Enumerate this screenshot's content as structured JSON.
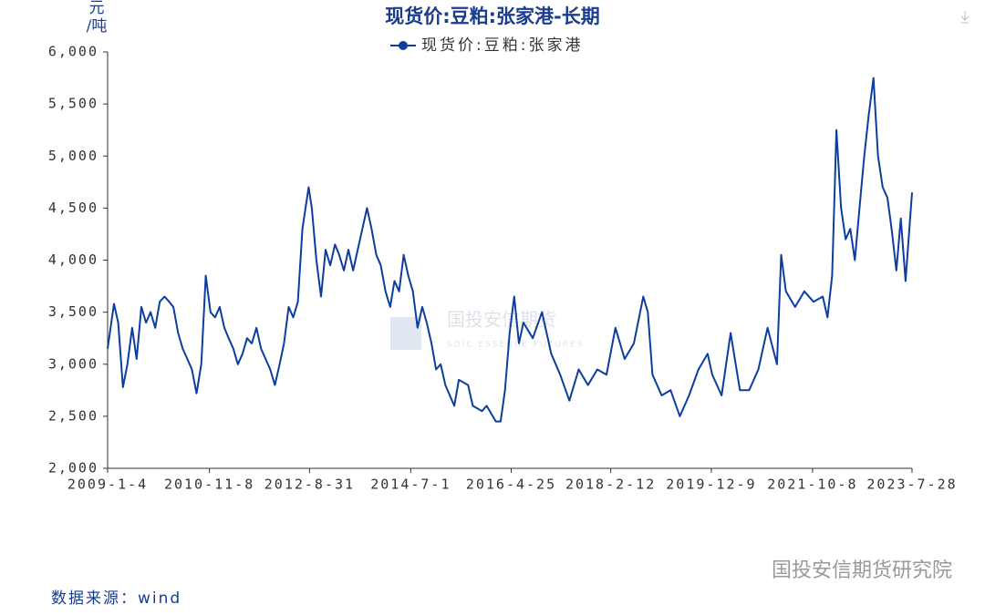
{
  "chart_data": {
    "type": "line",
    "title": "现货价:豆粕:张家港-长期",
    "y_label_lines": [
      "元",
      "/吨"
    ],
    "watermark": "国投安信期货",
    "watermark_sub": "SDIC ESSENCE FUTURES",
    "source": "数据来源：wind",
    "brand": "国投安信期货研究院",
    "legend_position": "top",
    "grid": false,
    "xlim": [
      "2009-01-04",
      "2023-07-28"
    ],
    "xticks": [
      {
        "value": "2009-01-04",
        "label": "2009-1-4"
      },
      {
        "value": "2010-11-08",
        "label": "2010-11-8"
      },
      {
        "value": "2012-08-31",
        "label": "2012-8-31"
      },
      {
        "value": "2014-07-01",
        "label": "2014-7-1"
      },
      {
        "value": "2016-04-25",
        "label": "2016-4-25"
      },
      {
        "value": "2018-02-12",
        "label": "2018-2-12"
      },
      {
        "value": "2019-12-09",
        "label": "2019-12-9"
      },
      {
        "value": "2021-10-08",
        "label": "2021-10-8"
      },
      {
        "value": "2023-07-28",
        "label": "2023-7-28"
      }
    ],
    "ylim": [
      2000,
      6000
    ],
    "yticks": [
      {
        "value": 2000,
        "label": "2,000"
      },
      {
        "value": 2500,
        "label": "2,500"
      },
      {
        "value": 3000,
        "label": "3,000"
      },
      {
        "value": 3500,
        "label": "3,500"
      },
      {
        "value": 4000,
        "label": "4,000"
      },
      {
        "value": 4500,
        "label": "4,500"
      },
      {
        "value": 5000,
        "label": "5,000"
      },
      {
        "value": 5500,
        "label": "5,500"
      },
      {
        "value": 6000,
        "label": "6,000"
      }
    ],
    "x": [
      "2009-01-04",
      "2009-02-15",
      "2009-03-15",
      "2009-04-15",
      "2009-05-15",
      "2009-06-15",
      "2009-07-15",
      "2009-08-15",
      "2009-09-15",
      "2009-10-15",
      "2009-11-15",
      "2009-12-15",
      "2010-01-15",
      "2010-02-15",
      "2010-03-15",
      "2010-04-15",
      "2010-05-15",
      "2010-06-15",
      "2010-07-15",
      "2010-08-15",
      "2010-09-15",
      "2010-10-15",
      "2010-11-15",
      "2010-12-15",
      "2011-01-15",
      "2011-02-15",
      "2011-03-15",
      "2011-04-15",
      "2011-05-15",
      "2011-06-15",
      "2011-07-15",
      "2011-08-15",
      "2011-09-15",
      "2011-10-15",
      "2011-12-15",
      "2012-01-15",
      "2012-02-15",
      "2012-03-15",
      "2012-04-15",
      "2012-05-15",
      "2012-06-15",
      "2012-07-15",
      "2012-08-25",
      "2012-09-15",
      "2012-10-15",
      "2012-11-15",
      "2012-12-15",
      "2013-01-15",
      "2013-02-15",
      "2013-03-15",
      "2013-04-15",
      "2013-05-15",
      "2013-06-15",
      "2013-08-15",
      "2013-09-15",
      "2013-10-15",
      "2013-11-15",
      "2013-12-15",
      "2014-01-15",
      "2014-02-15",
      "2014-03-15",
      "2014-04-15",
      "2014-05-15",
      "2014-06-15",
      "2014-07-15",
      "2014-08-15",
      "2014-09-15",
      "2014-10-15",
      "2014-11-15",
      "2014-12-15",
      "2015-01-15",
      "2015-02-15",
      "2015-04-15",
      "2015-05-15",
      "2015-07-15",
      "2015-08-15",
      "2015-10-15",
      "2015-11-15",
      "2016-01-15",
      "2016-02-15",
      "2016-03-15",
      "2016-04-15",
      "2016-05-15",
      "2016-06-15",
      "2016-07-15",
      "2016-09-15",
      "2016-11-15",
      "2017-01-15",
      "2017-03-15",
      "2017-05-15",
      "2017-07-15",
      "2017-09-15",
      "2017-11-15",
      "2018-01-15",
      "2018-03-15",
      "2018-05-15",
      "2018-07-15",
      "2018-09-15",
      "2018-10-15",
      "2018-11-15",
      "2019-01-15",
      "2019-03-15",
      "2019-05-15",
      "2019-07-15",
      "2019-09-15",
      "2019-11-15",
      "2019-12-15",
      "2020-02-15",
      "2020-04-15",
      "2020-06-15",
      "2020-08-15",
      "2020-10-15",
      "2020-12-15",
      "2021-02-15",
      "2021-03-15",
      "2021-04-15",
      "2021-06-15",
      "2021-08-15",
      "2021-10-15",
      "2021-12-15",
      "2022-01-15",
      "2022-02-15",
      "2022-03-15",
      "2022-04-15",
      "2022-05-15",
      "2022-06-15",
      "2022-07-15",
      "2022-08-15",
      "2022-09-15",
      "2022-10-15",
      "2022-11-15",
      "2022-12-15",
      "2023-01-15",
      "2023-02-15",
      "2023-03-15",
      "2023-04-15",
      "2023-05-15",
      "2023-06-15",
      "2023-07-28"
    ],
    "series": [
      {
        "name": "现货价:豆粕:张家港",
        "color": "#0d3d9e",
        "values": [
          3150,
          3580,
          3400,
          2780,
          3000,
          3350,
          3050,
          3550,
          3400,
          3500,
          3350,
          3600,
          3650,
          3600,
          3550,
          3300,
          3150,
          3050,
          2950,
          2720,
          3000,
          3850,
          3500,
          3450,
          3550,
          3350,
          3250,
          3150,
          3000,
          3100,
          3250,
          3200,
          3350,
          3150,
          2950,
          2800,
          3000,
          3200,
          3550,
          3450,
          3600,
          4300,
          4700,
          4500,
          4000,
          3650,
          4100,
          3950,
          4150,
          4050,
          3900,
          4100,
          3900,
          4300,
          4500,
          4300,
          4050,
          3950,
          3700,
          3550,
          3800,
          3700,
          4050,
          3850,
          3700,
          3350,
          3550,
          3400,
          3200,
          2950,
          3000,
          2800,
          2600,
          2850,
          2800,
          2600,
          2550,
          2600,
          2450,
          2450,
          2750,
          3300,
          3650,
          3200,
          3400,
          3250,
          3500,
          3100,
          2900,
          2650,
          2950,
          2800,
          2950,
          2900,
          3350,
          3050,
          3200,
          3650,
          3500,
          2900,
          2700,
          2750,
          2500,
          2700,
          2950,
          3100,
          2900,
          2700,
          3300,
          2750,
          2750,
          2950,
          3350,
          3000,
          4050,
          3700,
          3550,
          3700,
          3600,
          3650,
          3450,
          3850,
          5250,
          4500,
          4200,
          4300,
          4000,
          4500,
          5000,
          5400,
          5750,
          5000,
          4700,
          4600,
          4300,
          3900,
          4400,
          3800,
          4650
        ]
      }
    ]
  }
}
